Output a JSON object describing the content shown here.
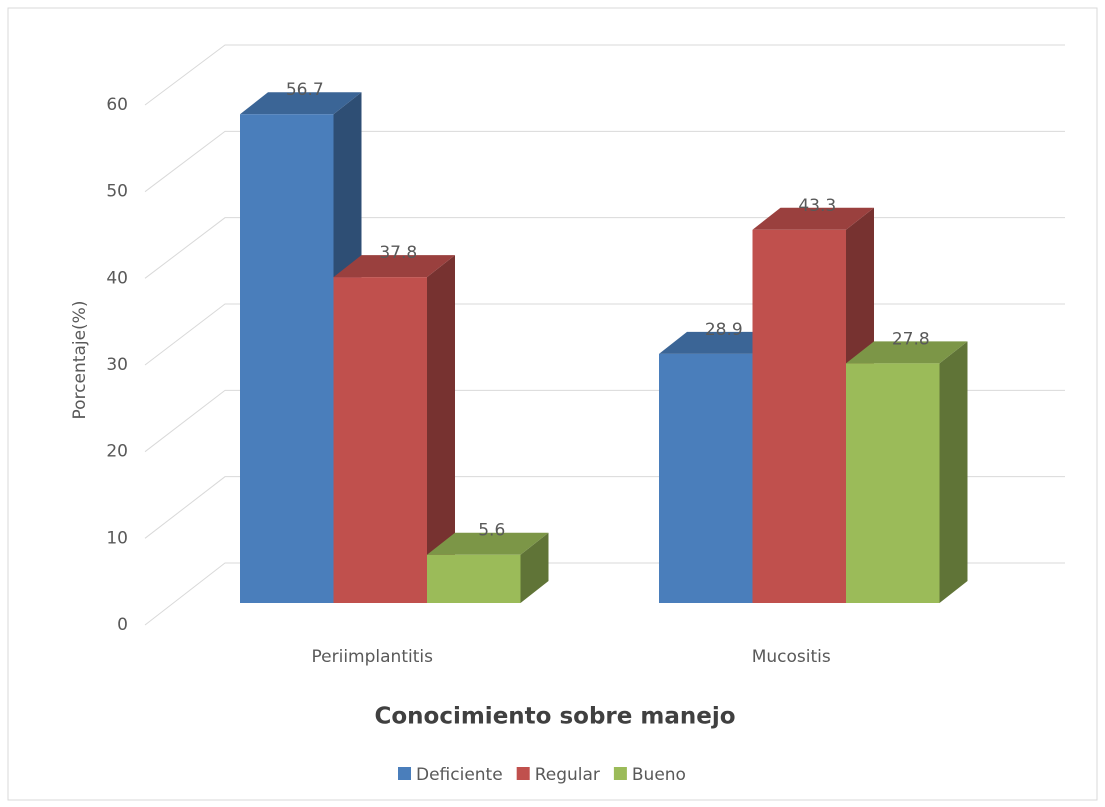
{
  "chart_data": {
    "type": "bar3d",
    "x_label": "Conocimiento sobre manejo",
    "y_label": "Porcentaje(%)",
    "categories": [
      "Periimplantitis",
      "Mucositis"
    ],
    "series": [
      {
        "name": "Deficiente",
        "color": "#4a7ebb",
        "values": [
          56.7,
          28.9
        ]
      },
      {
        "name": "Regular",
        "color": "#c0504d",
        "values": [
          37.8,
          43.3
        ]
      },
      {
        "name": "Bueno",
        "color": "#9bbb59",
        "values": [
          5.6,
          27.8
        ]
      }
    ],
    "ylim": [
      0,
      60
    ],
    "yticks": [
      0,
      10,
      20,
      30,
      40,
      50,
      60
    ],
    "grid": true,
    "legend": "bottom"
  }
}
